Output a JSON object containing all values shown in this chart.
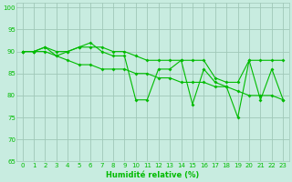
{
  "xlabel": "Humidité relative (%)",
  "xlim": [
    -0.5,
    23.5
  ],
  "ylim": [
    65,
    101
  ],
  "yticks": [
    65,
    70,
    75,
    80,
    85,
    90,
    95,
    100
  ],
  "xticks": [
    0,
    1,
    2,
    3,
    4,
    5,
    6,
    7,
    8,
    9,
    10,
    11,
    12,
    13,
    14,
    15,
    16,
    17,
    18,
    19,
    20,
    21,
    22,
    23
  ],
  "background_color": "#c8ece0",
  "grid_color": "#a0c8b8",
  "line_color": "#00bb00",
  "series1": [
    90,
    90,
    91,
    89,
    90,
    91,
    92,
    90,
    89,
    89,
    79,
    79,
    86,
    86,
    88,
    78,
    86,
    83,
    82,
    75,
    88,
    79,
    86,
    79
  ],
  "series2": [
    90,
    90,
    90,
    89,
    88,
    87,
    87,
    86,
    86,
    86,
    85,
    85,
    84,
    84,
    83,
    83,
    83,
    82,
    82,
    81,
    80,
    80,
    80,
    79
  ],
  "series3": [
    90,
    90,
    91,
    90,
    90,
    91,
    91,
    91,
    90,
    90,
    89,
    88,
    88,
    88,
    88,
    88,
    88,
    84,
    83,
    83,
    88,
    88,
    88,
    88
  ]
}
